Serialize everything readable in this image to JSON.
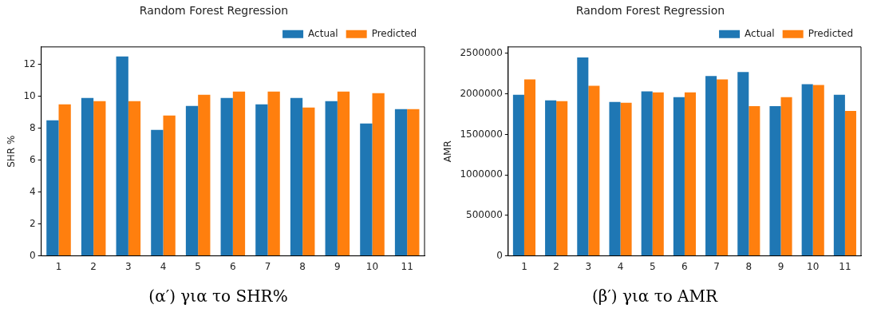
{
  "chart_data": [
    {
      "type": "bar",
      "title": "Random Forest Regression",
      "ylabel": "SHR %",
      "categories": [
        "1",
        "2",
        "3",
        "4",
        "5",
        "6",
        "7",
        "8",
        "9",
        "10",
        "11"
      ],
      "series": [
        {
          "name": "Actual",
          "color": "#1f77b4",
          "values": [
            8.5,
            9.9,
            12.5,
            7.9,
            9.4,
            9.9,
            9.5,
            9.9,
            9.7,
            8.3,
            9.2
          ]
        },
        {
          "name": "Predicted",
          "color": "#ff7f0e",
          "values": [
            9.5,
            9.7,
            9.7,
            8.8,
            10.1,
            10.3,
            10.3,
            9.3,
            10.3,
            10.2,
            9.2
          ]
        }
      ],
      "ylim": [
        0,
        13.1
      ],
      "yticks": [
        0,
        2,
        4,
        6,
        8,
        10,
        12
      ],
      "grid": false,
      "legend": "top right",
      "annotations": [
        "(α′) για το SHR%"
      ]
    },
    {
      "type": "bar",
      "title": "Random Forest Regression",
      "ylabel": "AMR",
      "categories": [
        "1",
        "2",
        "3",
        "4",
        "5",
        "6",
        "7",
        "8",
        "9",
        "10",
        "11"
      ],
      "series": [
        {
          "name": "Actual",
          "color": "#1f77b4",
          "values": [
            1990000,
            1920000,
            2450000,
            1900000,
            2030000,
            1960000,
            2220000,
            2270000,
            1850000,
            2120000,
            1990000
          ]
        },
        {
          "name": "Predicted",
          "color": "#ff7f0e",
          "values": [
            2180000,
            1910000,
            2100000,
            1890000,
            2020000,
            2020000,
            2180000,
            1850000,
            1960000,
            2110000,
            1790000
          ]
        }
      ],
      "ylim": [
        0,
        2580000
      ],
      "yticks": [
        0,
        500000,
        1000000,
        1500000,
        2000000,
        2500000
      ],
      "grid": false,
      "legend": "top right",
      "annotations": [
        "(β′) για το AMR"
      ]
    }
  ]
}
